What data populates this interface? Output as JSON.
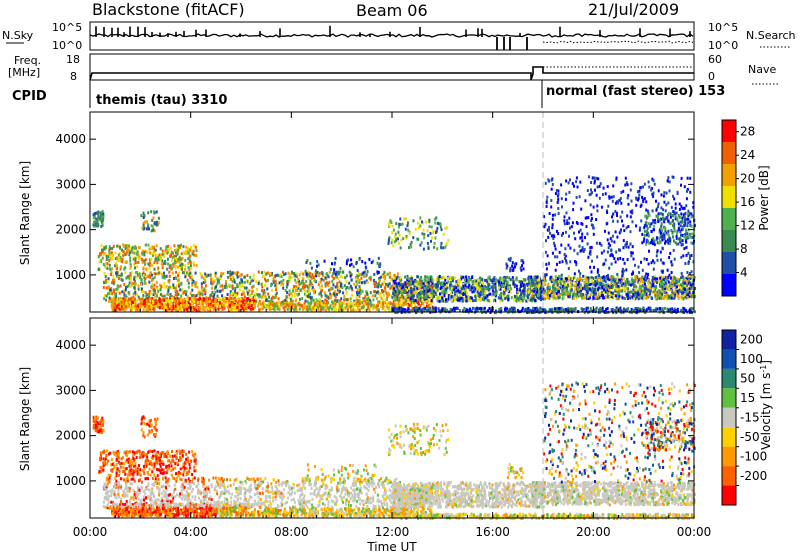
{
  "header": {
    "station": "Blackstone (fitACF)",
    "beam": "Beam 06",
    "date": "21/Jul/2009"
  },
  "sky_panel": {
    "left_label": "N.Sky",
    "left_ticks": [
      "10^5",
      "10^0"
    ],
    "right_label": "N.Search",
    "right_ticks": [
      "10^5",
      "10^0"
    ]
  },
  "freq_panel": {
    "left_label_1": "Freq.",
    "left_label_2": "[MHz]",
    "left_ticks": [
      "18",
      "8"
    ],
    "right_label": "Nave",
    "right_ticks": [
      "60",
      "0"
    ]
  },
  "cpid_panel": {
    "label": "CPID",
    "mode_1": "themis (tau) 3310",
    "mode_2": "normal (fast stereo) 153"
  },
  "colors": {
    "power_scale": [
      "#0000ff",
      "#1f4fa8",
      "#3a8a50",
      "#4fb04f",
      "#f0e000",
      "#f0a000",
      "#f06000",
      "#ff0000"
    ],
    "velocity_scale": [
      "#ff0000",
      "#ff6000",
      "#ff9900",
      "#ffd000",
      "#c8c8c0",
      "#60c040",
      "#2a8a70",
      "#1050b0",
      "#1020a0"
    ]
  },
  "chart_data": [
    {
      "type": "heatmap",
      "panel": "power",
      "ylabel": "Slant Range [km]",
      "y_ticks": [
        1000,
        2000,
        3000,
        4000
      ],
      "ylim": [
        180,
        4600
      ],
      "x_ticks": [
        "00:00",
        "04:00",
        "08:00",
        "12:00",
        "16:00",
        "20:00",
        "00:00"
      ],
      "xlim_hours": [
        0,
        24
      ],
      "colorbar": {
        "label": "Power [dB]",
        "ticks": [
          4,
          8,
          12,
          16,
          20,
          24,
          28
        ],
        "range": [
          0,
          30
        ]
      },
      "mode_change_hour": 18.0
    },
    {
      "type": "heatmap",
      "panel": "velocity",
      "ylabel": "Slant Range [km]",
      "y_ticks": [
        1000,
        2000,
        3000,
        4000
      ],
      "ylim": [
        180,
        4600
      ],
      "x_ticks": [
        "00:00",
        "04:00",
        "08:00",
        "12:00",
        "16:00",
        "20:00",
        "00:00"
      ],
      "xlim_hours": [
        0,
        24
      ],
      "xlabel": "Time UT",
      "colorbar": {
        "label_main": "Velocity [m s",
        "label_exp": "-1",
        "label_end": "]",
        "ticks": [
          200,
          100,
          50,
          15,
          -15,
          -50,
          -100,
          -200
        ]
      },
      "mode_change_hour": 18.0
    }
  ]
}
